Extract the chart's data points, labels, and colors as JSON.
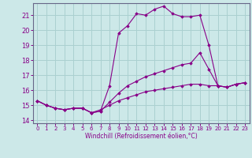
{
  "background_color": "#cce8e8",
  "grid_color": "#aad0d0",
  "line_color": "#880088",
  "xlabel": "Windchill (Refroidissement éolien,°C)",
  "xlim": [
    -0.5,
    23.5
  ],
  "ylim": [
    13.8,
    21.8
  ],
  "yticks": [
    14,
    15,
    16,
    17,
    18,
    19,
    20,
    21
  ],
  "xticks": [
    0,
    1,
    2,
    3,
    4,
    5,
    6,
    7,
    8,
    9,
    10,
    11,
    12,
    13,
    14,
    15,
    16,
    17,
    18,
    19,
    20,
    21,
    22,
    23
  ],
  "series": [
    {
      "x": [
        0,
        1,
        2,
        3,
        4,
        5,
        6,
        7,
        8,
        9,
        10,
        11,
        12,
        13,
        14,
        15,
        16,
        17,
        18,
        19,
        20,
        21,
        22,
        23
      ],
      "y": [
        15.3,
        15.0,
        14.8,
        14.7,
        14.8,
        14.8,
        14.5,
        14.6,
        16.3,
        19.8,
        20.3,
        21.1,
        21.0,
        21.4,
        21.6,
        21.1,
        20.9,
        20.9,
        21.0,
        19.0,
        16.3,
        16.2,
        16.4,
        16.5
      ]
    },
    {
      "x": [
        0,
        1,
        2,
        3,
        4,
        5,
        6,
        7,
        8,
        9,
        10,
        11,
        12,
        13,
        14,
        15,
        16,
        17,
        18,
        19,
        20,
        21,
        22,
        23
      ],
      "y": [
        15.3,
        15.0,
        14.8,
        14.7,
        14.8,
        14.8,
        14.5,
        14.6,
        15.2,
        15.8,
        16.3,
        16.6,
        16.9,
        17.1,
        17.3,
        17.5,
        17.7,
        17.8,
        18.5,
        17.4,
        16.3,
        16.2,
        16.4,
        16.5
      ]
    },
    {
      "x": [
        0,
        1,
        2,
        3,
        4,
        5,
        6,
        7,
        8,
        9,
        10,
        11,
        12,
        13,
        14,
        15,
        16,
        17,
        18,
        19,
        20,
        21,
        22,
        23
      ],
      "y": [
        15.3,
        15.0,
        14.8,
        14.7,
        14.8,
        14.8,
        14.5,
        14.7,
        15.0,
        15.3,
        15.5,
        15.7,
        15.9,
        16.0,
        16.1,
        16.2,
        16.3,
        16.4,
        16.4,
        16.3,
        16.3,
        16.2,
        16.4,
        16.5
      ]
    }
  ]
}
